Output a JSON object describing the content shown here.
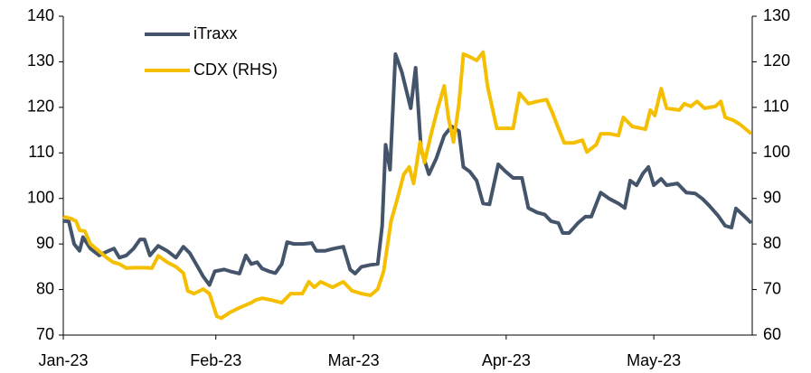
{
  "chart_data": {
    "type": "line",
    "xlim": [
      0,
      140
    ],
    "xticks": [
      {
        "value": 0,
        "label": "Jan-23"
      },
      {
        "value": 31,
        "label": "Feb-23"
      },
      {
        "value": 59,
        "label": "Mar-23"
      },
      {
        "value": 90,
        "label": "Apr-23"
      },
      {
        "value": 120,
        "label": "May-23"
      }
    ],
    "ylim": [
      70,
      140
    ],
    "yticks": [
      70,
      80,
      90,
      100,
      110,
      120,
      130,
      140
    ],
    "y2lim": [
      60,
      130
    ],
    "y2ticks": [
      60,
      70,
      80,
      90,
      100,
      110,
      120,
      130
    ],
    "legend": "top-left",
    "series": [
      {
        "name": "iTraxx",
        "color": "#44546a",
        "x": [
          0,
          1.1,
          2.2,
          3.3,
          4.0,
          5.5,
          7.3,
          9.2,
          10.3,
          11.4,
          12.8,
          14.3,
          15.6,
          16.5,
          17.6,
          19.3,
          21.1,
          22.9,
          24.4,
          25.7,
          27.2,
          28.4,
          29.7,
          30.8,
          32.7,
          33.9,
          35.8,
          37.1,
          38.2,
          39.4,
          40.4,
          41.8,
          43.1,
          44.4,
          45.5,
          46.8,
          48.6,
          50.5,
          51.4,
          53.2,
          55.0,
          56.9,
          58.3,
          59.3,
          60.6,
          62.4,
          63.9,
          64.8,
          65.5,
          66.4,
          67.5,
          68.8,
          70.6,
          71.6,
          72.7,
          74.3,
          75.8,
          77.4,
          78.9,
          80.4,
          81.3,
          82.6,
          84.0,
          85.3,
          86.6,
          88.4,
          89.9,
          91.4,
          93.2,
          94.5,
          96.3,
          97.8,
          99.1,
          100.6,
          101.5,
          102.8,
          104.6,
          106.1,
          107.3,
          109.2,
          111.0,
          112.8,
          114.1,
          115.2,
          116.5,
          117.8,
          118.9,
          120.0,
          121.5,
          122.6,
          124.8,
          126.6,
          128.4,
          129.9,
          131.2,
          133.0,
          134.5,
          135.8,
          136.7,
          138.5,
          139.8
        ],
        "values": [
          95,
          95,
          90,
          88.5,
          91.5,
          89,
          87.5,
          88.5,
          89,
          87,
          87.5,
          89,
          91,
          91,
          87.5,
          89.6,
          88.5,
          87,
          89.4,
          88,
          85.2,
          82.9,
          81,
          84,
          84.4,
          84,
          83.5,
          87.5,
          85.6,
          86,
          84.6,
          84,
          83.6,
          85.6,
          90.4,
          90,
          90,
          90.2,
          88.5,
          88.5,
          89,
          89.4,
          84.4,
          83.5,
          85,
          85.4,
          85.6,
          94,
          111.8,
          106.3,
          131.7,
          127.7,
          119.8,
          128.7,
          110.8,
          105.3,
          108.8,
          113.8,
          115.8,
          114.8,
          106.9,
          105.9,
          103.9,
          98.9,
          98.7,
          107.5,
          105.9,
          104.5,
          104.5,
          97.9,
          96.9,
          96.5,
          95,
          94.6,
          92.4,
          92.4,
          94.6,
          96,
          96,
          101.3,
          99.9,
          98.9,
          97.9,
          103.9,
          102.9,
          105.5,
          106.9,
          102.9,
          104.3,
          102.9,
          103.3,
          101.3,
          101.1,
          99.9,
          98.5,
          96.3,
          94,
          93.6,
          97.8,
          96,
          94.6
        ]
      },
      {
        "name": "CDX (RHS)",
        "color": "#f5bf00",
        "axis": "y2",
        "x": [
          0,
          1.5,
          2.6,
          3.3,
          4.4,
          5.5,
          7.3,
          8.8,
          10.1,
          11.4,
          12.8,
          14.3,
          16.5,
          18.0,
          19.3,
          21.1,
          22.9,
          24.4,
          25.3,
          26.6,
          28.4,
          29.7,
          31.2,
          32.1,
          33.9,
          35.8,
          38.2,
          39.1,
          40.4,
          42.2,
          44.4,
          46.2,
          48.6,
          49.9,
          51.0,
          52.3,
          54.7,
          56.9,
          58.7,
          60.6,
          62.4,
          63.9,
          65.1,
          66.6,
          67.9,
          69.2,
          70.3,
          71.2,
          72.5,
          73.4,
          74.9,
          76.1,
          77.4,
          78.3,
          79.3,
          80.4,
          81.3,
          82.6,
          84.0,
          85.3,
          86.2,
          88.1,
          89.9,
          91.4,
          92.7,
          94.5,
          96.3,
          98.2,
          99.4,
          100.6,
          101.8,
          103.7,
          105.5,
          106.4,
          108.3,
          109.2,
          111.0,
          112.8,
          113.8,
          115.6,
          118.3,
          119.3,
          120.2,
          121.5,
          122.6,
          125.2,
          126.2,
          127.5,
          128.8,
          130.3,
          132.5,
          133.6,
          134.5,
          136.1,
          137.6,
          139.8
        ],
        "values": [
          86,
          85.6,
          85,
          83,
          82.8,
          80,
          78.4,
          77,
          76,
          75.6,
          74.7,
          74.8,
          74.8,
          74.7,
          77.4,
          76,
          75,
          73.6,
          69.7,
          69.1,
          70.1,
          69.1,
          64.1,
          63.7,
          65,
          66,
          67.1,
          67.7,
          68.1,
          67.7,
          67.1,
          69.1,
          69.1,
          71.7,
          70.5,
          71.7,
          70.5,
          71.7,
          69.7,
          69.1,
          68.7,
          70.1,
          74,
          85,
          90,
          95.3,
          96.9,
          93.3,
          102.4,
          97.9,
          104.8,
          109.8,
          114.7,
          107.4,
          102.4,
          110.8,
          121.7,
          121.1,
          120.3,
          122.1,
          114.7,
          105.4,
          105.4,
          105.4,
          113.1,
          110.8,
          111.3,
          111.7,
          108.8,
          105.4,
          102.2,
          102.2,
          102.8,
          100.2,
          101.8,
          104.2,
          104.2,
          103.8,
          107.8,
          105.8,
          105.2,
          109.4,
          108.2,
          114.1,
          109.8,
          109.4,
          110.8,
          110.2,
          111.3,
          109.8,
          110.2,
          111.3,
          107.8,
          107.2,
          106.2,
          104.2
        ]
      }
    ]
  }
}
